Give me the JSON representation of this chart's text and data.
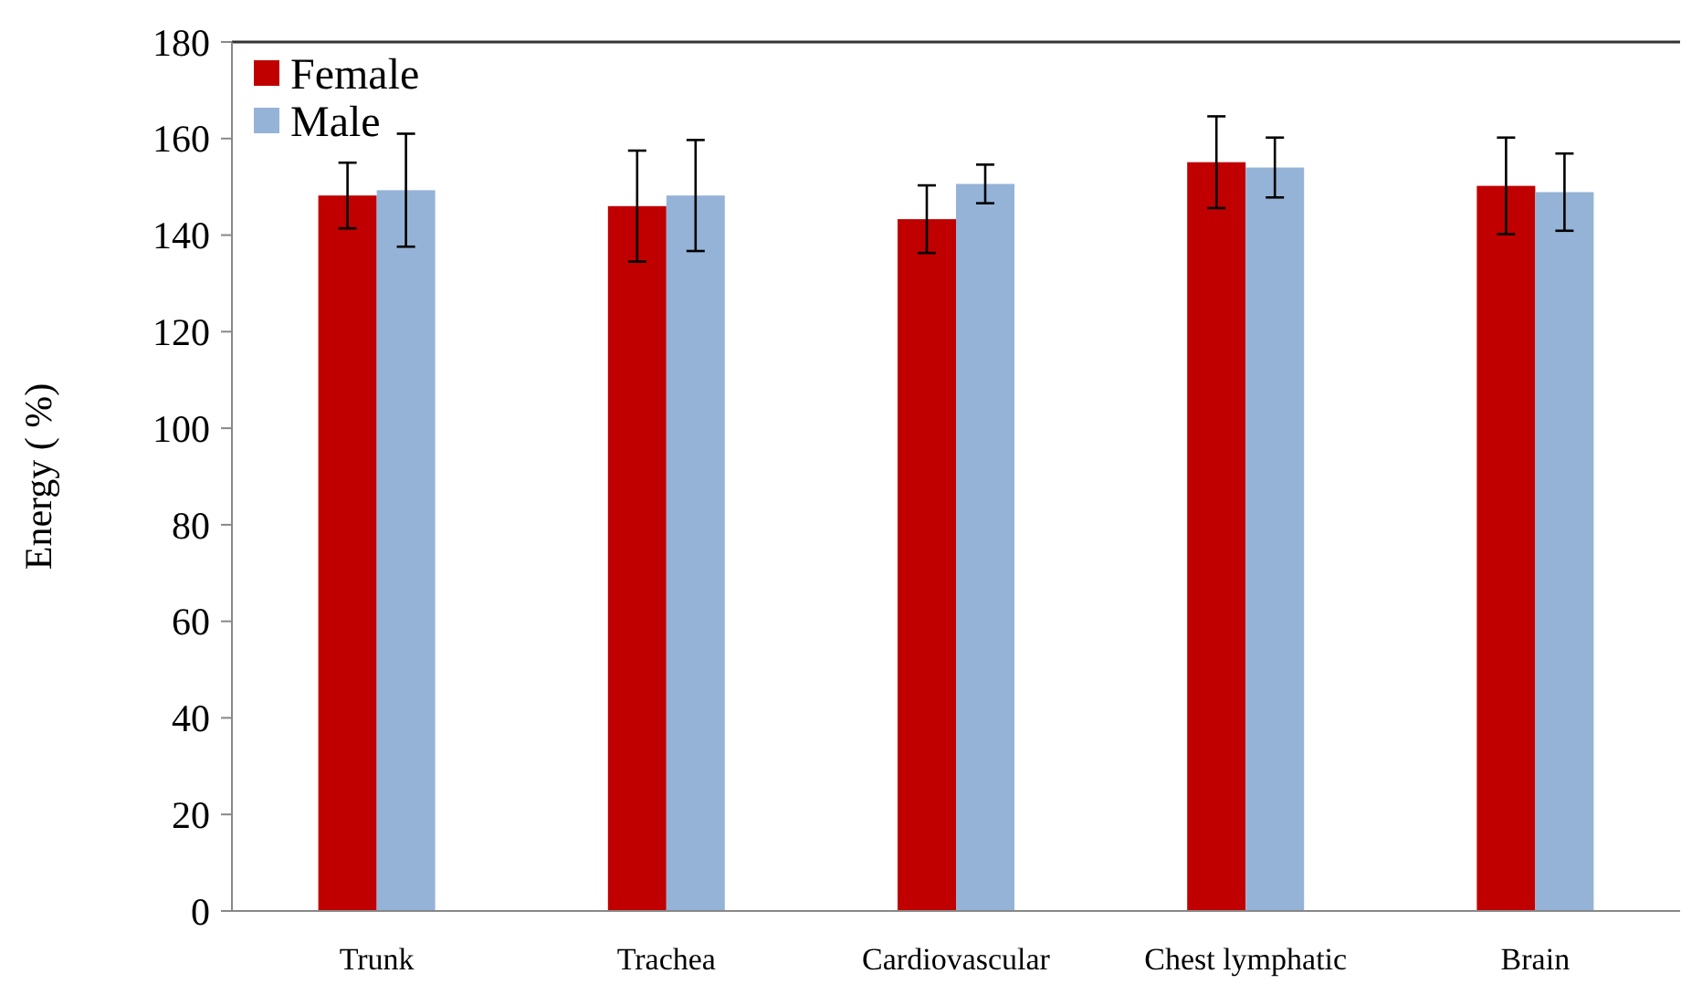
{
  "chart_data": {
    "type": "bar",
    "ylabel": "Energy ( %)",
    "categories": [
      "Trunk",
      "Trachea",
      "Cardiovascular",
      "Chest lymphatic",
      "Brain"
    ],
    "series": [
      {
        "name": "Female",
        "color": "#c00000",
        "values": [
          148.2,
          146.0,
          143.3,
          155.1,
          150.2
        ],
        "errors": [
          6.8,
          11.5,
          7,
          9.5,
          10
        ]
      },
      {
        "name": "Male",
        "color": "#95b3d7",
        "values": [
          149.3,
          148.2,
          150.6,
          154.0,
          148.9
        ],
        "errors": [
          11.7,
          11.5,
          4,
          6.2,
          8
        ]
      }
    ],
    "ylim": [
      0,
      180
    ],
    "yticks": [
      0,
      20,
      40,
      60,
      80,
      100,
      120,
      140,
      160,
      180
    ],
    "grid": false,
    "legend": "top left"
  }
}
